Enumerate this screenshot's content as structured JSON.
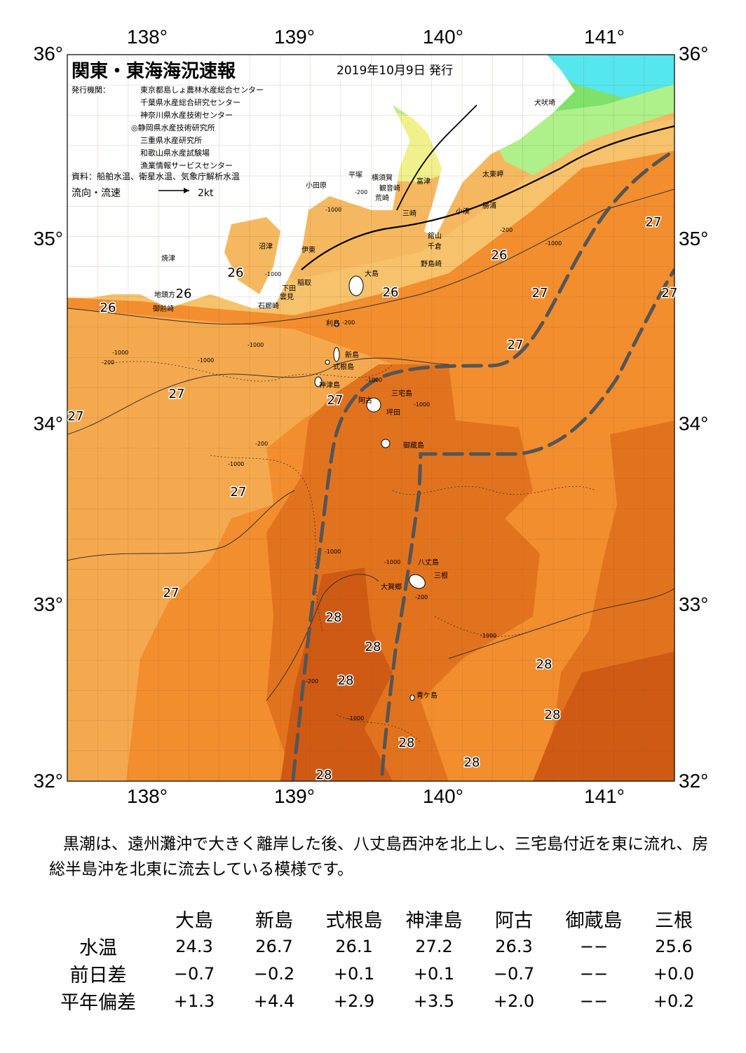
{
  "title": "関東・東海海況速報",
  "date": "2019年10月9日 発行",
  "issuer_label": "発行機関：",
  "issuers": [
    "東京都島しょ農林水産総合センター",
    "千葉県水産総合研究センター",
    "神奈川県水産技術センター",
    "◎静岡県水産技術研究所",
    "三重県水産研究所",
    "和歌山県水産試験場",
    "漁業情報サービスセンター"
  ],
  "source": "資料：船舶水温、衛星水温、気象庁解析水温",
  "flow_legend": "流向・流速",
  "flow_speed": "2kt",
  "lon_labels": [
    "138°",
    "139°",
    "140°",
    "141°"
  ],
  "lat_labels": [
    "36°",
    "35°",
    "34°",
    "33°",
    "32°"
  ],
  "isotherms": [
    "26",
    "26",
    "26",
    "26",
    "26",
    "27",
    "27",
    "27",
    "27",
    "27",
    "27",
    "27",
    "27",
    "27",
    "28",
    "28",
    "28",
    "28",
    "28",
    "28",
    "28",
    "28"
  ],
  "place_names": [
    "犬吠埼",
    "太東岬",
    "勝浦",
    "小湊",
    "富津",
    "横須賀",
    "観音崎",
    "荒崎",
    "三崎",
    "平塚",
    "小田原",
    "館山",
    "千倉",
    "野島崎",
    "沼津",
    "伊東",
    "焼津",
    "大島",
    "稲取",
    "下田",
    "雲見",
    "石廊崎",
    "地頭方",
    "御前崎",
    "利島",
    "新島",
    "式根島",
    "神津島",
    "三宅島",
    "阿古",
    "坪田",
    "御蔵島",
    "八丈島",
    "三根",
    "大賀郷",
    "青ケ島"
  ],
  "depth_labels": [
    "-200",
    "-200",
    "-1000",
    "-1000",
    "-200",
    "-1000",
    "-1000",
    "-200",
    "-200",
    "-1000",
    "-1000",
    "-1000",
    "-200",
    "-1000",
    "-1000",
    "-1000",
    "-200",
    "-1000",
    "-1000",
    "-1000"
  ],
  "colors": {
    "cyan": "#55e6ee",
    "green_light": "#aef08a",
    "green": "#7fe06a",
    "yellow": "#f0f08c",
    "orange_pale": "#f6c26b",
    "orange_light": "#f5a94e",
    "orange": "#f28e2e",
    "orange_dark": "#e2731e",
    "brown": "#cf5a14",
    "kuroshio": "#555555"
  },
  "summary": "黒潮は、遠州灘沖で大きく離岸した後、八丈島西沖を北上し、三宅島付近を東に流れ、房総半島沖を北東に流去している模様です。",
  "table": {
    "stations": [
      "大島",
      "新島",
      "式根島",
      "神津島",
      "阿古",
      "御蔵島",
      "三根"
    ],
    "rows": [
      {
        "label": "水温",
        "values": [
          "24.3",
          "26.7",
          "26.1",
          "27.2",
          "26.3",
          "−−",
          "25.6"
        ]
      },
      {
        "label": "前日差",
        "values": [
          "−0.7",
          "−0.2",
          "+0.1",
          "+0.1",
          "−0.7",
          "−−",
          "+0.0"
        ]
      },
      {
        "label": "平年偏差",
        "values": [
          "+1.3",
          "+4.4",
          "+2.9",
          "+3.5",
          "+2.0",
          "−−",
          "+0.2"
        ]
      }
    ]
  }
}
